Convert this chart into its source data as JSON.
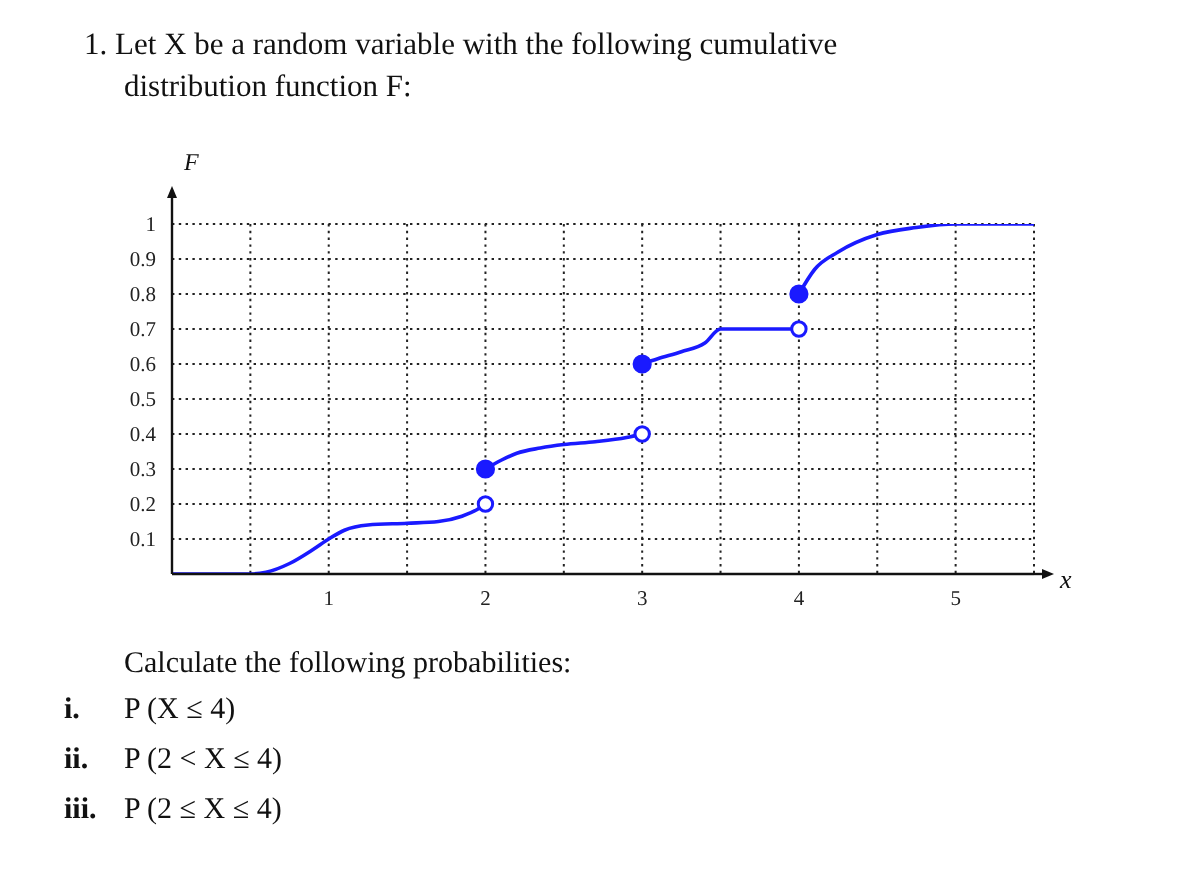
{
  "chart_data": {
    "type": "line",
    "title": "1. Let X be a random variable with the following cumulative distribution function F:",
    "xlabel": "x",
    "ylabel": "F",
    "xlim": [
      0,
      5.5
    ],
    "ylim": [
      0,
      1
    ],
    "xticks": [
      {
        "value": 0.5,
        "label": null
      },
      1,
      {
        "value": 1.5,
        "label": null
      },
      2,
      {
        "value": 2.5,
        "label": null
      },
      3,
      {
        "value": 3.5,
        "label": null
      },
      4,
      {
        "value": 4.5,
        "label": null
      },
      5,
      {
        "value": 5.5,
        "label": null
      }
    ],
    "yticks": [
      0.1,
      0.2,
      0.3,
      0.4,
      0.5,
      0.6,
      0.7,
      0.8,
      0.9,
      1
    ],
    "grid": true,
    "line_style": "solid",
    "series": [
      {
        "color": "#1a1aff",
        "marker": "none",
        "x": [
          0,
          0.5,
          0.6,
          0.75,
          0.9,
          1,
          1.1,
          1.25,
          1.5,
          1.7,
          1.85,
          1.95,
          2
        ],
        "values": [
          0,
          0,
          0.005,
          0.03,
          0.07,
          0.1,
          0.125,
          0.14,
          0.145,
          0.15,
          0.165,
          0.185,
          0.2
        ]
      },
      {
        "color": "#1a1aff",
        "marker": "none",
        "x": [
          2,
          2.1,
          2.2,
          2.35,
          2.5,
          2.7,
          2.9,
          3
        ],
        "values": [
          0.3,
          0.325,
          0.345,
          0.36,
          0.37,
          0.378,
          0.39,
          0.4
        ]
      },
      {
        "color": "#1a1aff",
        "marker": "none",
        "x": [
          3,
          3.1,
          3.25,
          3.4,
          3.5,
          4
        ],
        "values": [
          0.6,
          0.615,
          0.635,
          0.66,
          0.7,
          0.7
        ]
      },
      {
        "color": "#1a1aff",
        "marker": "none",
        "x": [
          4,
          4.1,
          4.25,
          4.5,
          4.75,
          5,
          5.5
        ],
        "values": [
          0.8,
          0.87,
          0.92,
          0.97,
          0.99,
          1,
          1
        ]
      },
      {
        "type": "scatter",
        "color": "#1a1aff",
        "marker": "circle",
        "x": [
          2,
          3,
          4
        ],
        "values": [
          0.3,
          0.6,
          0.8
        ]
      },
      {
        "type": "scatter",
        "color": "#1a1aff",
        "marker": "circle",
        "x": [
          2,
          3,
          4
        ],
        "values": [
          0.2,
          0.4,
          0.7
        ]
      }
    ],
    "annotations": [
      "Calculate the following probabilities:",
      "i. P (X ≤ 4)",
      "ii. P (2 < X ≤ 4)",
      "iii. P (2 ≤ X ≤ 4)"
    ]
  }
}
